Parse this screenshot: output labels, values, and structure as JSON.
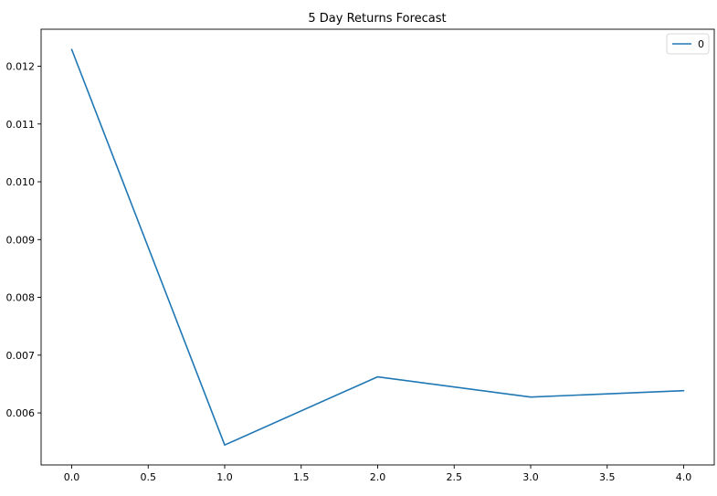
{
  "chart_data": {
    "type": "line",
    "title": "5 Day Returns Forecast",
    "xlabel": "",
    "ylabel": "",
    "x": [
      0.0,
      1.0,
      2.0,
      3.0,
      4.0
    ],
    "series": [
      {
        "name": "0",
        "color": "#1f77b4",
        "values": [
          0.01229,
          0.005445,
          0.006625,
          0.006275,
          0.006385
        ]
      }
    ],
    "xlim": [
      -0.2,
      4.2
    ],
    "ylim": [
      0.0051,
      0.01264
    ],
    "x_ticks": [
      {
        "value": 0.0,
        "label": "0.0"
      },
      {
        "value": 0.5,
        "label": "0.5"
      },
      {
        "value": 1.0,
        "label": "1.0"
      },
      {
        "value": 1.5,
        "label": "1.5"
      },
      {
        "value": 2.0,
        "label": "2.0"
      },
      {
        "value": 2.5,
        "label": "2.5"
      },
      {
        "value": 3.0,
        "label": "3.0"
      },
      {
        "value": 3.5,
        "label": "3.5"
      },
      {
        "value": 4.0,
        "label": "4.0"
      }
    ],
    "y_ticks": [
      {
        "value": 0.006,
        "label": "0.006"
      },
      {
        "value": 0.007,
        "label": "0.007"
      },
      {
        "value": 0.008,
        "label": "0.008"
      },
      {
        "value": 0.009,
        "label": "0.009"
      },
      {
        "value": 0.01,
        "label": "0.010"
      },
      {
        "value": 0.011,
        "label": "0.011"
      },
      {
        "value": 0.012,
        "label": "0.012"
      }
    ],
    "grid": false,
    "legend": {
      "placement": "top-right"
    }
  }
}
